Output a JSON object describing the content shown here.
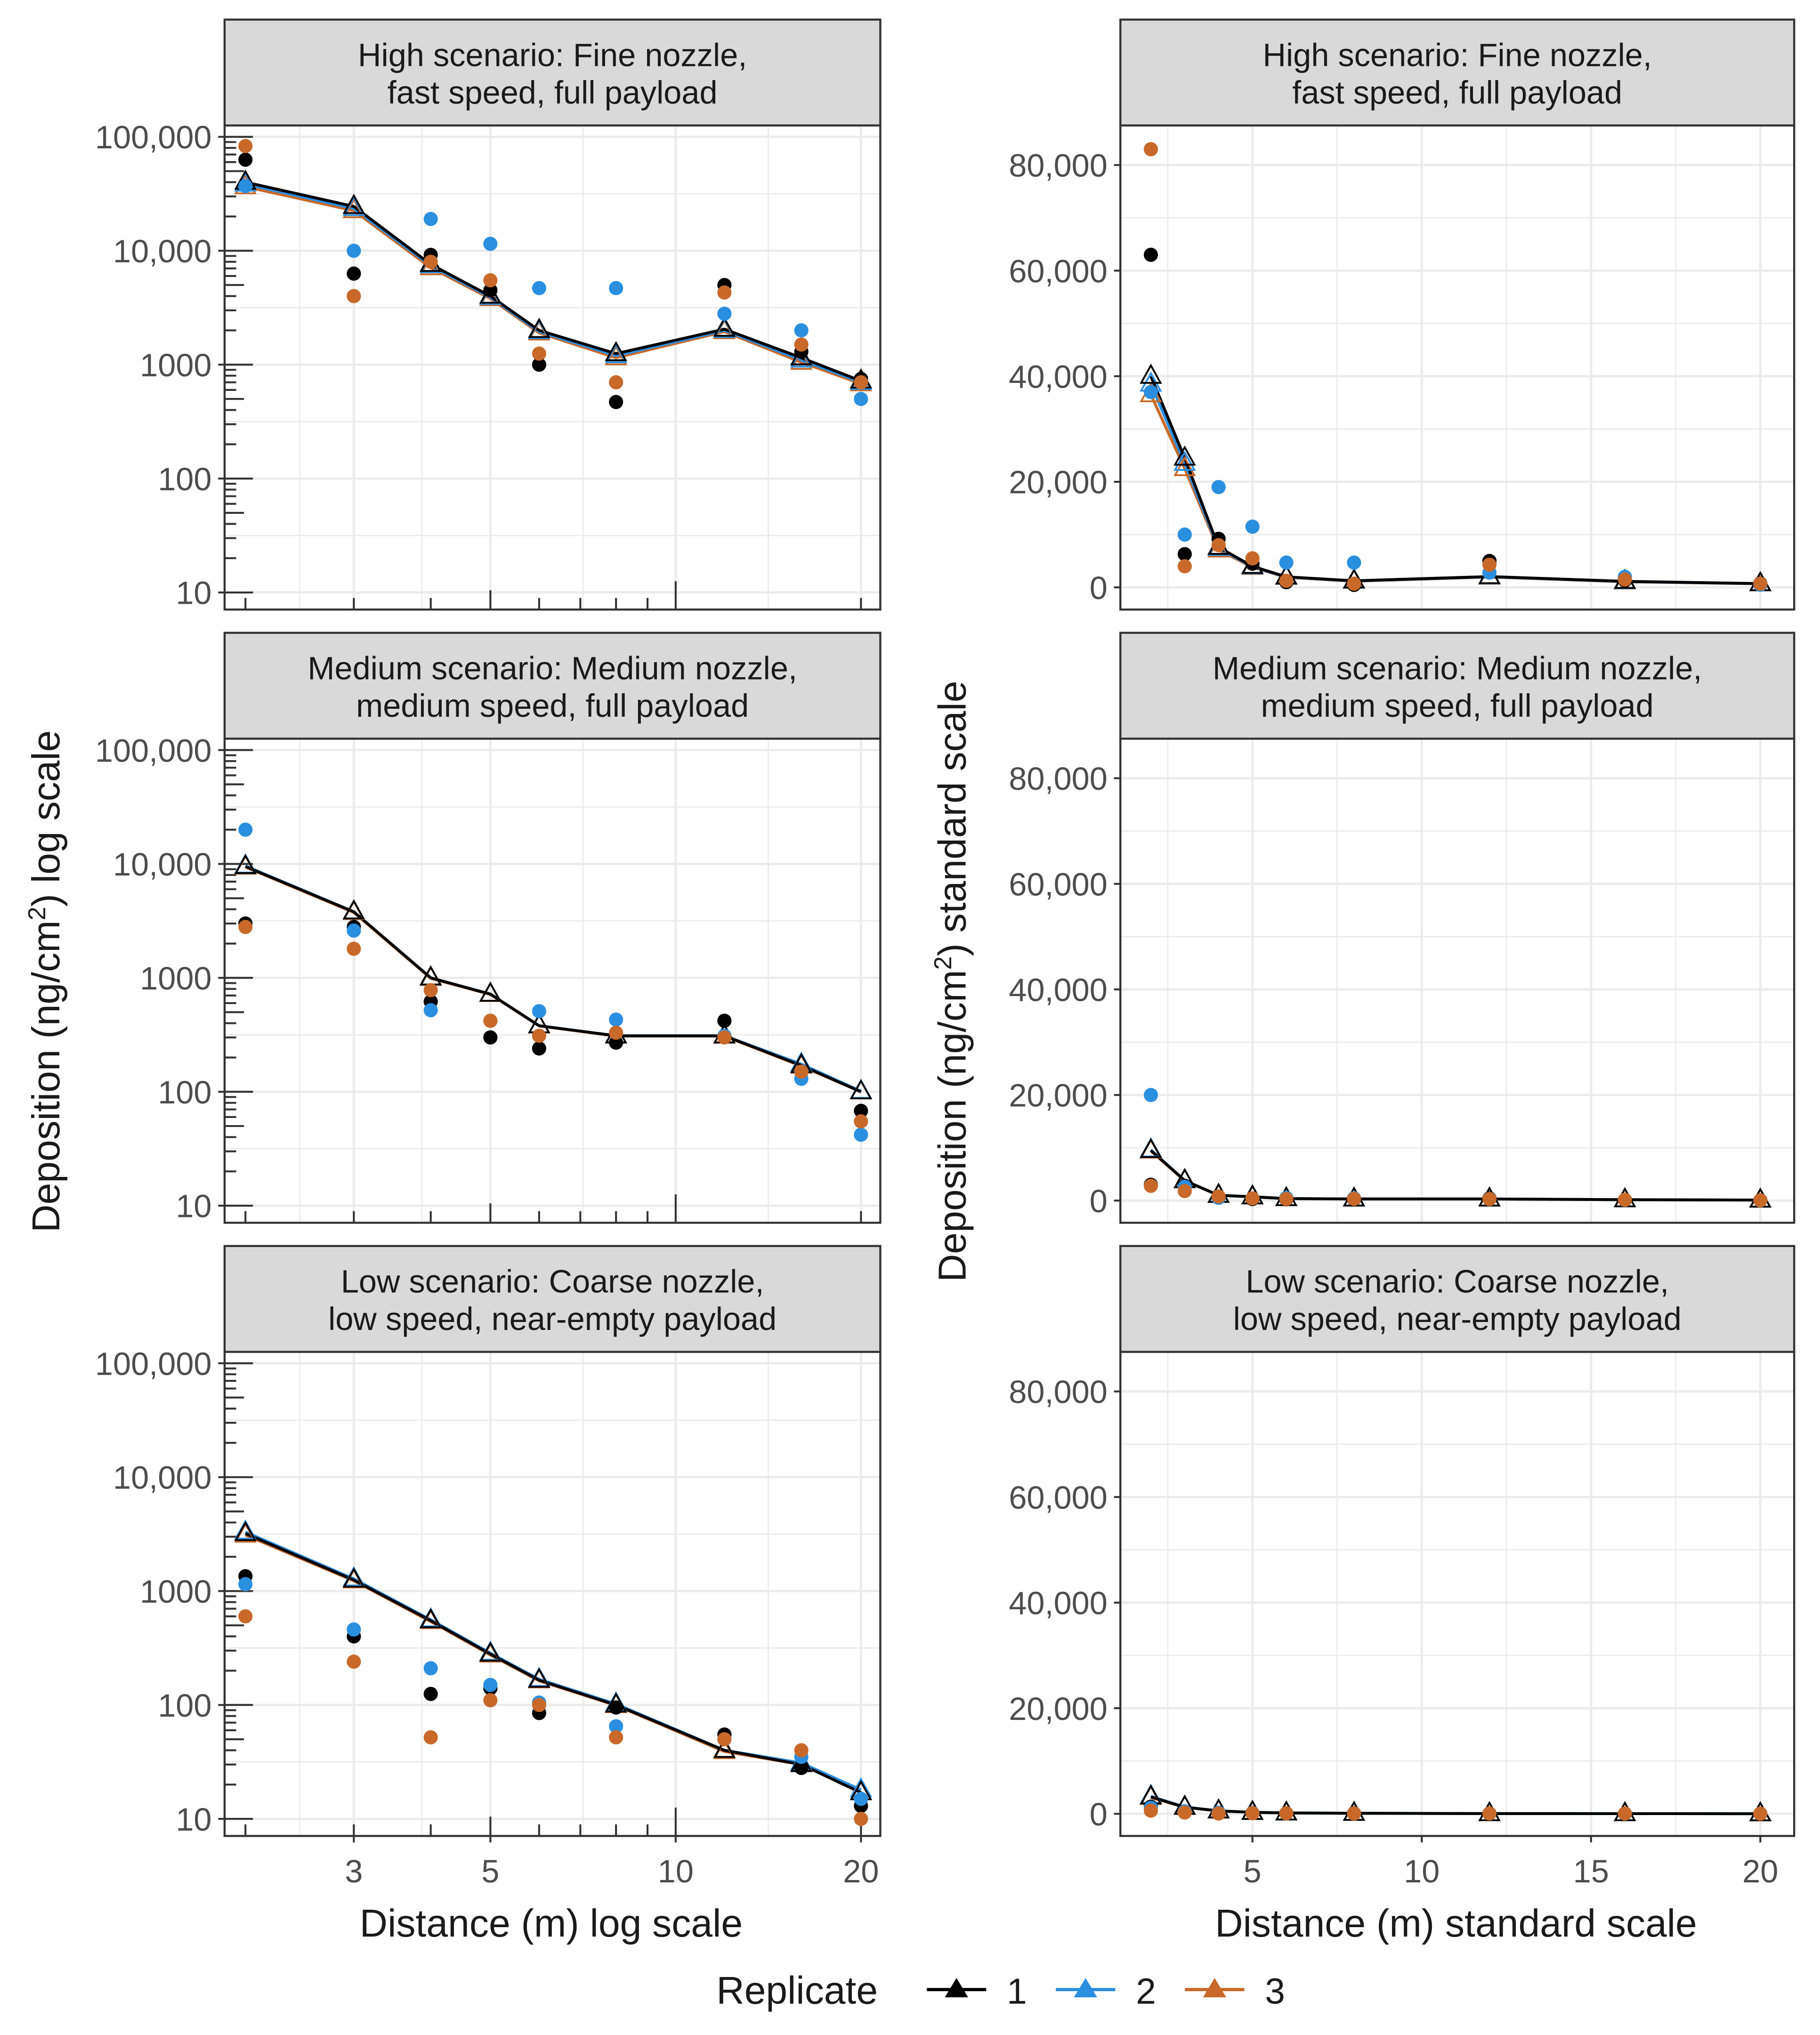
{
  "figure": {
    "left_ylabel_pre": "Deposition (ng/cm",
    "left_ylabel_sup": "2",
    "left_ylabel_post": ") log scale",
    "right_ylabel_pre": "Deposition (ng/cm",
    "right_ylabel_sup": "2",
    "right_ylabel_post": ") standard scale",
    "left_xlabel": "Distance (m) log scale",
    "right_xlabel": "Distance (m) standard scale",
    "legend_title": "Replicate",
    "legend_items": [
      "1",
      "2",
      "3"
    ]
  },
  "colors": {
    "rep1": "#000000",
    "rep2": "#2b8fe0",
    "rep3": "#c8692a",
    "strip_bg": "#d9d9d9",
    "grid": "#ebebeb",
    "frame": "#333333",
    "text": "#1a1a1a",
    "tick_text": "#4d4d4d"
  },
  "chart_data": {
    "type": "scatter",
    "x": [
      2,
      3,
      4,
      5,
      6,
      8,
      12,
      16,
      20
    ],
    "series_names": [
      "1",
      "2",
      "3"
    ],
    "axes": {
      "log": {
        "xlim": [
          1.85,
          21.5
        ],
        "xticks": [
          3,
          5,
          10,
          20
        ],
        "ylim_log10": [
          0.85,
          5.1
        ],
        "yticks": [
          10,
          100,
          1000,
          10000,
          100000
        ],
        "ytick_labels": [
          "10",
          "100",
          "1000",
          "10,000",
          "100,000"
        ]
      },
      "standard": {
        "xlim": [
          1.1,
          21.0
        ],
        "xticks": [
          5,
          10,
          15,
          20
        ],
        "xtick_labels": [
          "5",
          "10",
          "15",
          "20"
        ],
        "ylim": [
          -4200,
          87500
        ],
        "yticks": [
          0,
          20000,
          40000,
          60000,
          80000
        ],
        "ytick_labels": [
          "0",
          "20,000",
          "40,000",
          "60,000",
          "80,000"
        ]
      }
    },
    "panels": [
      {
        "strip": [
          "High scenario: Fine nozzle,",
          "fast speed, full payload"
        ],
        "points": {
          "1": [
            63000,
            6300,
            9200,
            4500,
            1000,
            470,
            5000,
            1300,
            750
          ],
          "2": [
            37000,
            10000,
            19000,
            11500,
            4700,
            4700,
            2800,
            2000,
            500
          ],
          "3": [
            83000,
            4000,
            8000,
            5500,
            1250,
            700,
            4300,
            1500,
            700
          ]
        },
        "lines": {
          "1": [
            40000,
            24500,
            7600,
            4000,
            2000,
            1250,
            2050,
            1150,
            720
          ],
          "2": [
            38500,
            23500,
            7400,
            3900,
            1950,
            1200,
            2000,
            1100,
            700
          ],
          "3": [
            36500,
            22500,
            7100,
            3800,
            1900,
            1150,
            1950,
            1050,
            680
          ]
        }
      },
      {
        "strip": [
          "Medium scenario: Medium nozzle,",
          "medium speed, full payload"
        ],
        "points": {
          "1": [
            3000,
            2800,
            620,
            300,
            240,
            270,
            420,
            150,
            68
          ],
          "2": [
            20000,
            2600,
            520,
            420,
            510,
            430,
            310,
            130,
            42
          ],
          "3": [
            2800,
            1800,
            780,
            420,
            310,
            330,
            300,
            150,
            55
          ]
        },
        "lines": {
          "1": [
            9500,
            3800,
            1000,
            720,
            380,
            310,
            310,
            170,
            100
          ],
          "2": [
            9600,
            3800,
            1000,
            720,
            380,
            310,
            310,
            175,
            101
          ],
          "3": [
            9400,
            3750,
            990,
            715,
            378,
            308,
            308,
            168,
            100
          ]
        }
      },
      {
        "strip": [
          "Low scenario: Coarse nozzle,",
          "low speed, near-empty payload"
        ],
        "points": {
          "1": [
            1350,
            400,
            125,
            140,
            85,
            95,
            55,
            28,
            13
          ],
          "2": [
            1150,
            460,
            210,
            150,
            105,
            65,
            50,
            35,
            15
          ],
          "3": [
            600,
            240,
            52,
            110,
            100,
            52,
            50,
            40,
            10
          ]
        },
        "lines": {
          "1": [
            3200,
            1250,
            550,
            280,
            165,
            100,
            40,
            30,
            17
          ],
          "2": [
            3300,
            1280,
            560,
            285,
            168,
            102,
            40,
            31,
            18
          ],
          "3": [
            3100,
            1230,
            540,
            275,
            163,
            99,
            39,
            30,
            17
          ]
        }
      }
    ]
  }
}
